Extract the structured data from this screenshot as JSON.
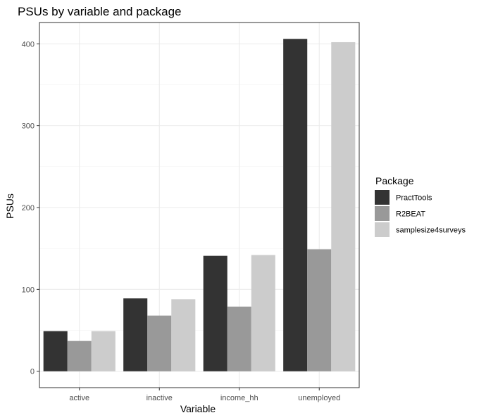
{
  "chart_data": {
    "type": "bar",
    "title": "PSUs by variable and package",
    "xlabel": "Variable",
    "ylabel": "PSUs",
    "categories": [
      "active",
      "inactive",
      "income_hh",
      "unemployed"
    ],
    "series": [
      {
        "name": "PractTools",
        "color": "#333333",
        "values": [
          49,
          89,
          141,
          406
        ]
      },
      {
        "name": "R2BEAT",
        "color": "#999999",
        "values": [
          37,
          68,
          79,
          149
        ]
      },
      {
        "name": "samplesize4surveys",
        "color": "#cccccc",
        "values": [
          49,
          88,
          142,
          402
        ]
      }
    ],
    "yticks": [
      0,
      100,
      200,
      300,
      400
    ],
    "ylim": [
      -20,
      426
    ],
    "grid": true,
    "legend": {
      "title": "Package",
      "position": "right"
    }
  }
}
